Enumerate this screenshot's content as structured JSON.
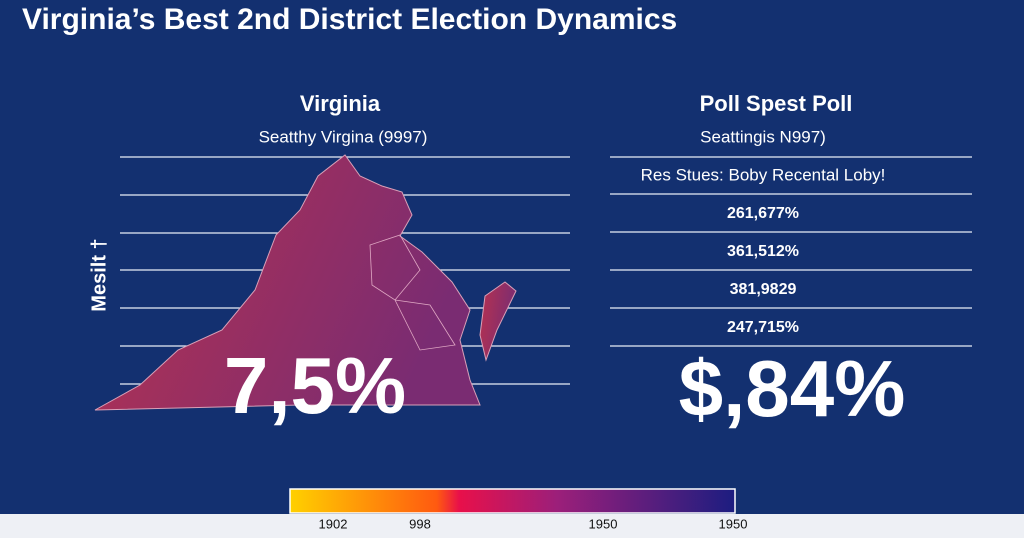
{
  "header": {
    "title": "Virginia’s Best 2nd District Election Dynamics"
  },
  "left_panel": {
    "heading": "Virginia",
    "subheading": "Seatthy Virgina (9997)",
    "axis_label": "Mesilt †",
    "big_value": "7,5%"
  },
  "right_panel": {
    "heading": "Poll Spest Poll",
    "subheading": "Seattingis N997)",
    "rows": [
      "Res Stues: Boby Recental Loby!",
      "261,677%",
      "361,512%",
      "381,9829",
      "247,715%"
    ],
    "big_value": "$,84%"
  },
  "legend": {
    "labels": [
      "1902",
      "998",
      "1950",
      "1950"
    ]
  }
}
